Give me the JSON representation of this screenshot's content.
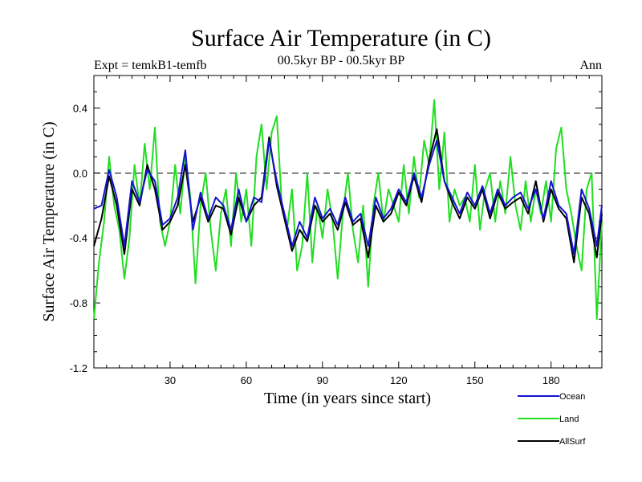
{
  "chart_data": {
    "type": "line",
    "title": "Surface Air Temperature (in C)",
    "subtitle": "00.5kyr BP - 00.5kyr BP",
    "experiment_label": "Expt = temkB1-temfb",
    "season_label": "Ann",
    "xlabel": "Time (in years since start)",
    "ylabel": "Surface Air Temperature (in C)",
    "xlim": [
      0,
      200
    ],
    "ylim": [
      -1.2,
      0.6
    ],
    "x_ticks": [
      30,
      60,
      90,
      120,
      150,
      180
    ],
    "x_tick_labels": [
      "30",
      "60",
      "90",
      "120",
      "150",
      "180"
    ],
    "y_ticks": [
      0.4,
      0.0,
      -0.4,
      -0.8,
      -1.2
    ],
    "y_tick_labels": [
      "0.4",
      "0.0",
      "-0.4",
      "-0.8",
      "-1.2"
    ],
    "zero_line": true,
    "legend_position": "bottom-right, below plot",
    "colors": {
      "Ocean": "#1414d2",
      "Land": "#22dd22",
      "AllSurf": "#000000",
      "axes": "#000000"
    },
    "series": [
      {
        "name": "Ocean",
        "x": [
          0,
          3,
          6,
          9,
          12,
          15,
          18,
          21,
          24,
          27,
          30,
          33,
          36,
          39,
          42,
          45,
          48,
          51,
          54,
          57,
          60,
          63,
          66,
          69,
          72,
          75,
          78,
          81,
          84,
          87,
          90,
          93,
          96,
          99,
          102,
          105,
          108,
          111,
          114,
          117,
          120,
          123,
          126,
          129,
          132,
          135,
          138,
          141,
          144,
          147,
          150,
          153,
          156,
          159,
          162,
          165,
          168,
          171,
          174,
          177,
          180,
          183,
          186,
          189,
          192,
          195,
          198,
          200
        ],
        "values": [
          -0.22,
          -0.2,
          0.02,
          -0.15,
          -0.45,
          -0.05,
          -0.18,
          0.02,
          -0.05,
          -0.32,
          -0.28,
          -0.15,
          0.14,
          -0.35,
          -0.12,
          -0.28,
          -0.15,
          -0.2,
          -0.35,
          -0.1,
          -0.3,
          -0.15,
          -0.18,
          0.2,
          -0.05,
          -0.25,
          -0.45,
          -0.3,
          -0.4,
          -0.15,
          -0.28,
          -0.22,
          -0.32,
          -0.15,
          -0.3,
          -0.25,
          -0.45,
          -0.15,
          -0.28,
          -0.22,
          -0.1,
          -0.18,
          0.0,
          -0.15,
          0.05,
          0.2,
          -0.05,
          -0.15,
          -0.25,
          -0.12,
          -0.2,
          -0.08,
          -0.25,
          -0.1,
          -0.2,
          -0.15,
          -0.12,
          -0.22,
          -0.1,
          -0.28,
          -0.05,
          -0.2,
          -0.25,
          -0.5,
          -0.1,
          -0.22,
          -0.45,
          -0.2
        ]
      },
      {
        "name": "Land",
        "x": [
          0,
          2,
          4,
          6,
          8,
          10,
          12,
          14,
          16,
          18,
          20,
          22,
          24,
          26,
          28,
          30,
          32,
          34,
          36,
          38,
          40,
          42,
          44,
          46,
          48,
          50,
          52,
          54,
          56,
          58,
          60,
          62,
          64,
          66,
          68,
          70,
          72,
          74,
          76,
          78,
          80,
          82,
          84,
          86,
          88,
          90,
          92,
          94,
          96,
          98,
          100,
          102,
          104,
          106,
          108,
          110,
          112,
          114,
          116,
          118,
          120,
          122,
          124,
          126,
          128,
          130,
          132,
          134,
          136,
          138,
          140,
          142,
          144,
          146,
          148,
          150,
          152,
          154,
          156,
          158,
          160,
          162,
          164,
          166,
          168,
          170,
          172,
          174,
          176,
          178,
          180,
          182,
          184,
          186,
          188,
          190,
          192,
          194,
          196,
          198,
          200
        ],
        "values": [
          -0.9,
          -0.55,
          -0.3,
          0.1,
          -0.2,
          -0.35,
          -0.65,
          -0.4,
          0.05,
          -0.2,
          0.18,
          -0.1,
          0.28,
          -0.3,
          -0.45,
          -0.3,
          0.05,
          -0.25,
          0.1,
          -0.15,
          -0.68,
          -0.2,
          0.0,
          -0.35,
          -0.6,
          -0.25,
          -0.1,
          -0.45,
          0.0,
          -0.3,
          -0.1,
          -0.45,
          0.1,
          0.3,
          -0.1,
          0.25,
          0.35,
          -0.2,
          -0.35,
          -0.1,
          -0.6,
          -0.45,
          0.0,
          -0.55,
          -0.2,
          -0.4,
          -0.1,
          -0.3,
          -0.65,
          -0.25,
          0.0,
          -0.35,
          -0.55,
          -0.2,
          -0.7,
          -0.2,
          0.0,
          -0.3,
          -0.1,
          -0.2,
          -0.3,
          0.05,
          -0.25,
          0.1,
          -0.15,
          0.2,
          0.05,
          0.45,
          -0.1,
          0.25,
          -0.3,
          -0.1,
          -0.2,
          -0.15,
          -0.3,
          0.05,
          -0.35,
          -0.1,
          0.0,
          -0.3,
          -0.05,
          -0.25,
          0.1,
          -0.2,
          -0.35,
          -0.05,
          -0.3,
          -0.1,
          -0.25,
          -0.05,
          -0.3,
          0.15,
          0.28,
          -0.1,
          -0.25,
          -0.45,
          -0.6,
          -0.1,
          0.0,
          -0.9,
          -0.3
        ]
      },
      {
        "name": "AllSurf",
        "x": [
          0,
          3,
          6,
          9,
          12,
          15,
          18,
          21,
          24,
          27,
          30,
          33,
          36,
          39,
          42,
          45,
          48,
          51,
          54,
          57,
          60,
          63,
          66,
          69,
          72,
          75,
          78,
          81,
          84,
          87,
          90,
          93,
          96,
          99,
          102,
          105,
          108,
          111,
          114,
          117,
          120,
          123,
          126,
          129,
          132,
          135,
          138,
          141,
          144,
          147,
          150,
          153,
          156,
          159,
          162,
          165,
          168,
          171,
          174,
          177,
          180,
          183,
          186,
          189,
          192,
          195,
          198,
          200
        ],
        "values": [
          -0.45,
          -0.28,
          -0.02,
          -0.2,
          -0.5,
          -0.1,
          -0.2,
          0.05,
          -0.1,
          -0.35,
          -0.3,
          -0.2,
          0.05,
          -0.3,
          -0.15,
          -0.3,
          -0.2,
          -0.22,
          -0.38,
          -0.15,
          -0.3,
          -0.2,
          -0.15,
          0.22,
          -0.08,
          -0.28,
          -0.48,
          -0.35,
          -0.42,
          -0.2,
          -0.3,
          -0.25,
          -0.35,
          -0.18,
          -0.32,
          -0.28,
          -0.52,
          -0.2,
          -0.3,
          -0.25,
          -0.12,
          -0.2,
          -0.02,
          -0.18,
          0.08,
          0.27,
          -0.05,
          -0.18,
          -0.28,
          -0.15,
          -0.22,
          -0.1,
          -0.28,
          -0.12,
          -0.22,
          -0.18,
          -0.15,
          -0.25,
          -0.05,
          -0.3,
          -0.1,
          -0.22,
          -0.28,
          -0.55,
          -0.15,
          -0.25,
          -0.52,
          -0.25
        ]
      }
    ]
  }
}
